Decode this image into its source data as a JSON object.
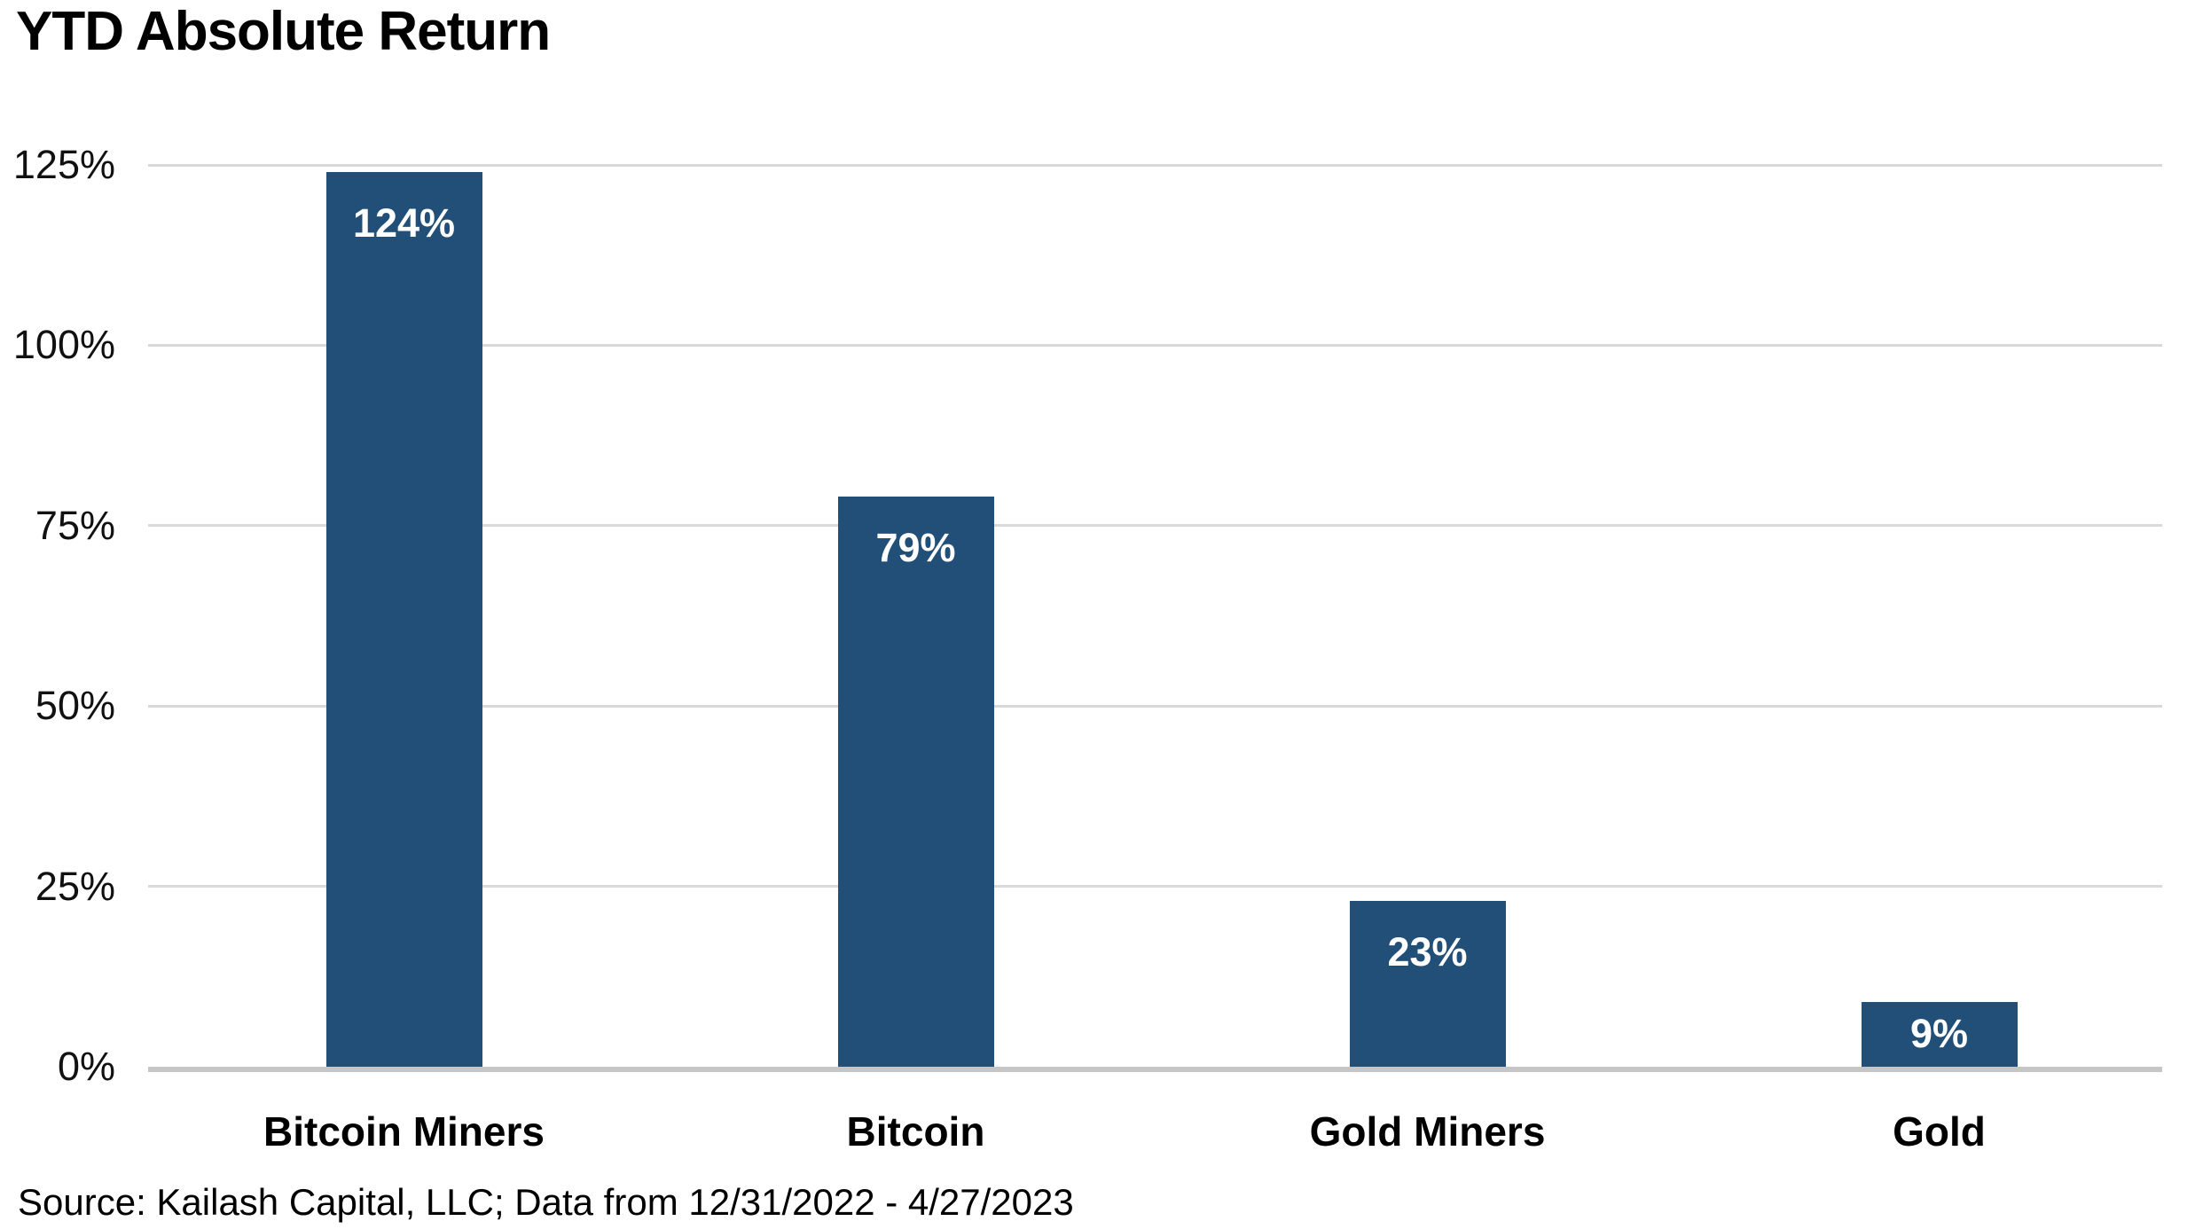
{
  "title": "YTD Absolute Return",
  "source_note": "Source: Kailash Capital, LLC; Data from 12/31/2022 - 4/27/2023",
  "colors": {
    "bar": "#214f78",
    "gridline": "#d9d9d9",
    "axis_line": "#c6c6c6",
    "bar_label_text": "#ffffff",
    "text": "#000000"
  },
  "chart_data": {
    "type": "bar",
    "title": "YTD Absolute Return",
    "categories": [
      "Bitcoin Miners",
      "Bitcoin",
      "Gold Miners",
      "Gold"
    ],
    "values": [
      124,
      79,
      23,
      9
    ],
    "data_labels": [
      "124%",
      "79%",
      "23%",
      "9%"
    ],
    "xlabel": "",
    "ylabel": "",
    "ylim": [
      0,
      125
    ],
    "yticks": [
      {
        "value": 0,
        "label": "0%"
      },
      {
        "value": 25,
        "label": "25%"
      },
      {
        "value": 50,
        "label": "50%"
      },
      {
        "value": 75,
        "label": "75%"
      },
      {
        "value": 100,
        "label": "100%"
      },
      {
        "value": 125,
        "label": "125%"
      }
    ],
    "grid": true,
    "legend": false,
    "source": "Source: Kailash Capital, LLC; Data from 12/31/2022 - 4/27/2023"
  }
}
